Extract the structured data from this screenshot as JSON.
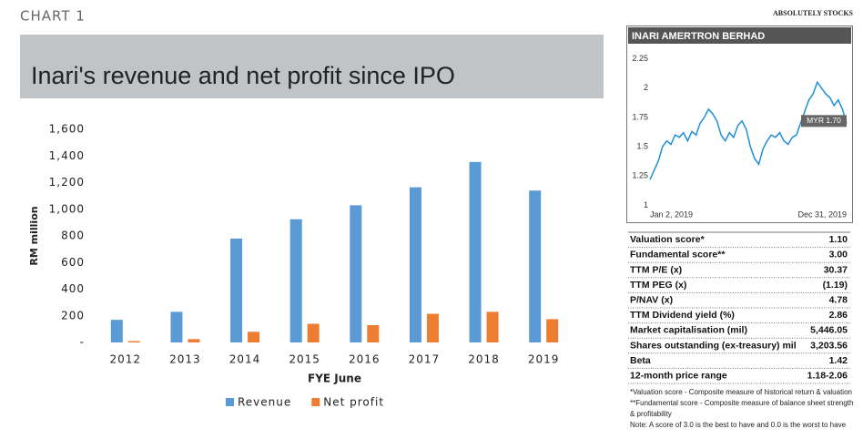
{
  "header": {
    "label": "CHART 1",
    "source": "ABSOLUTELY STOCKS"
  },
  "chart_data": [
    {
      "type": "bar",
      "title": "Inari's revenue and net profit since IPO",
      "categories": [
        "2012",
        "2013",
        "2014",
        "2015",
        "2016",
        "2017",
        "2018",
        "2019"
      ],
      "series": [
        {
          "name": "Revenue",
          "color": "#5b9bd5",
          "values": [
            170,
            230,
            780,
            925,
            1030,
            1165,
            1355,
            1140
          ]
        },
        {
          "name": "Net profit",
          "color": "#ed7d31",
          "values": [
            10,
            25,
            80,
            140,
            130,
            215,
            230,
            175
          ]
        }
      ],
      "xlabel": "FYE June",
      "ylabel": "RM million",
      "ylim": [
        0,
        1600
      ],
      "yticks": [
        {
          "value": 0,
          "label": "-"
        },
        200,
        400,
        600,
        800,
        {
          "value": 1000,
          "label": "1,000"
        },
        {
          "value": 1200,
          "label": "1,200"
        },
        {
          "value": 1400,
          "label": "1,400"
        },
        {
          "value": 1600,
          "label": "1,600"
        }
      ],
      "legend": "bottom",
      "grid": false
    },
    {
      "type": "line",
      "title": "INARI AMERTRON BERHAD",
      "categories": [
        "Jan 2, 2019",
        null,
        null,
        null,
        null,
        null,
        null,
        null,
        null,
        null,
        null,
        null,
        null,
        null,
        null,
        null,
        null,
        null,
        null,
        null,
        null,
        null,
        null,
        null,
        null,
        null,
        null,
        null,
        null,
        null,
        null,
        null,
        null,
        null,
        null,
        null,
        null,
        null,
        null,
        null,
        null,
        null,
        null,
        null,
        null,
        null,
        null,
        "Dec 31, 2019"
      ],
      "values": [
        1.22,
        1.3,
        1.38,
        1.5,
        1.55,
        1.52,
        1.6,
        1.58,
        1.62,
        1.55,
        1.63,
        1.6,
        1.7,
        1.75,
        1.82,
        1.78,
        1.72,
        1.6,
        1.55,
        1.62,
        1.58,
        1.68,
        1.72,
        1.65,
        1.5,
        1.4,
        1.35,
        1.48,
        1.55,
        1.6,
        1.58,
        1.62,
        1.55,
        1.52,
        1.58,
        1.6,
        1.7,
        1.8,
        1.9,
        1.95,
        2.05,
        2.0,
        1.95,
        1.92,
        1.85,
        1.9,
        1.82,
        1.7
      ],
      "color": "#1f8fd8",
      "ylim": [
        0.95,
        2.3
      ],
      "yticks": [
        1,
        1.25,
        1.5,
        1.75,
        2,
        2.25
      ],
      "annotation": "MYR 1.70",
      "grid": false
    }
  ],
  "table": {
    "rows": [
      [
        "Valuation score*",
        "1.10"
      ],
      [
        "Fundamental score**",
        "3.00"
      ],
      [
        "TTM P/E (x)",
        "30.37"
      ],
      [
        "TTM PEG (x)",
        "(1.19)"
      ],
      [
        "P/NAV (x)",
        "4.78"
      ],
      [
        "TTM Dividend yield (%)",
        "2.86"
      ],
      [
        "Market capitalisation (mil)",
        "5,446.05"
      ],
      [
        "Shares outstanding (ex-treasury) mil",
        "3,203.56"
      ],
      [
        "Beta",
        "1.42"
      ],
      [
        "12-month price range",
        "1.18-2.06"
      ]
    ]
  },
  "notes": [
    "*Valuation score - Composite measure of historical return & valuation",
    "**Fundamental score - Composite measure of balance sheet strength",
    "& profitability",
    "Note: A score of 3.0 is the best to have and 0.0 is the worst to have"
  ]
}
